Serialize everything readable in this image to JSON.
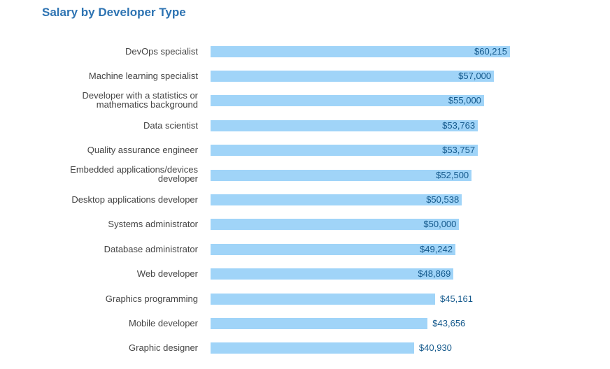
{
  "title": "Salary by Developer Type",
  "colors": {
    "title": "#2D73B2",
    "bar": "#A0D4F8",
    "annotation": "#14598C",
    "category_label": "#444444",
    "background": "#ffffff"
  },
  "chart_data": {
    "type": "bar",
    "orientation": "horizontal",
    "title": "Salary by Developer Type",
    "xlabel": "",
    "ylabel": "",
    "xlim": [
      0,
      60215
    ],
    "grid": false,
    "legend": "none",
    "categories": [
      "DevOps specialist",
      "Machine learning specialist",
      "Developer with a statistics or mathematics background",
      "Data scientist",
      "Quality assurance engineer",
      "Embedded applications/devices developer",
      "Desktop applications developer",
      "Systems administrator",
      "Database administrator",
      "Web developer",
      "Graphics programming",
      "Mobile developer",
      "Graphic designer"
    ],
    "values": [
      60215,
      57000,
      55000,
      53763,
      53757,
      52500,
      50538,
      50000,
      49242,
      48869,
      45161,
      43656,
      40930
    ],
    "value_labels": [
      "$60,215",
      "$57,000",
      "$55,000",
      "$53,763",
      "$53,757",
      "$52,500",
      "$50,538",
      "$50,000",
      "$49,242",
      "$48,869",
      "$45,161",
      "$43,656",
      "$40,930"
    ]
  }
}
